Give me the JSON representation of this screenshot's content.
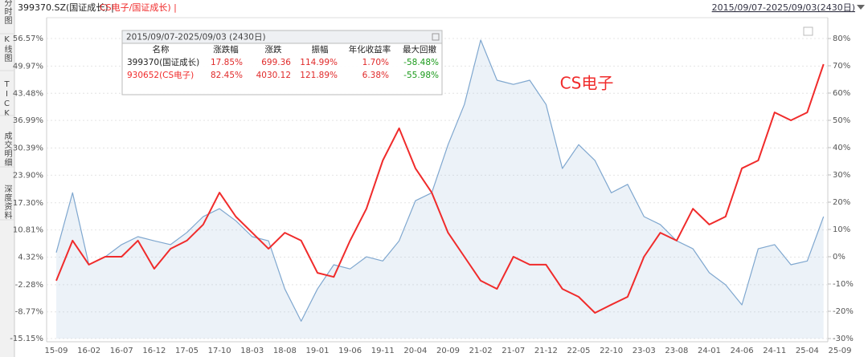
{
  "chart_data": {
    "type": "line",
    "title": "399370.SZ(国证成长) |",
    "subtitle": "CS电子/国证成长) |",
    "date_range": "2015/09/07-2025/09/03(2430日)",
    "annotation": "CS电子",
    "sidebar_tabs": [
      "分时图",
      "K线图",
      "TICK",
      "成交明细",
      "深度资料"
    ],
    "categories": [
      "15-09",
      null,
      "16-02",
      null,
      "16-07",
      null,
      "16-12",
      null,
      "17-05",
      null,
      "17-10",
      null,
      "18-03",
      null,
      "18-08",
      null,
      "19-01",
      null,
      "19-06",
      null,
      "19-11",
      null,
      "20-04",
      null,
      "20-09",
      null,
      "21-02",
      null,
      "21-07",
      null,
      "21-12",
      null,
      "22-05",
      null,
      "22-10",
      null,
      "23-03",
      null,
      "23-08",
      null,
      "24-01",
      null,
      "24-06",
      null,
      "24-11",
      null,
      "25-04",
      null,
      "25-09"
    ],
    "series": [
      {
        "name": "399370(国证成长)",
        "color": "#7fa7cf",
        "fill": "rgba(170,195,225,0.22)",
        "values": [
          5.4,
          19.7,
          2.5,
          4.4,
          7.3,
          9.2,
          8.2,
          7.3,
          10.2,
          14.0,
          15.9,
          13.0,
          9.2,
          8.2,
          -3.3,
          -11.0,
          -3.3,
          2.5,
          1.5,
          4.4,
          3.4,
          8.2,
          17.8,
          19.7,
          31.2,
          40.8,
          56.2,
          46.6,
          45.6,
          46.6,
          40.8,
          25.5,
          31.2,
          27.4,
          19.7,
          21.7,
          14.0,
          12.1,
          8.2,
          6.3,
          0.6,
          -2.3,
          -7.1,
          6.3,
          7.3,
          2.5,
          3.4,
          14.0,
          null
        ]
      },
      {
        "name": "930652(CS电子)",
        "color": "#f02b2b",
        "axis": "y2",
        "values": [
          -8.8,
          5.9,
          -2.9,
          0.0,
          0.0,
          5.9,
          -4.4,
          2.9,
          5.9,
          11.8,
          23.5,
          14.7,
          8.8,
          2.9,
          8.8,
          5.9,
          -5.9,
          -7.4,
          5.9,
          17.6,
          35.3,
          47.1,
          32.4,
          23.5,
          8.8,
          0.0,
          -8.8,
          -11.8,
          0.0,
          -2.9,
          -2.9,
          -11.8,
          -14.7,
          -20.6,
          -17.6,
          -14.7,
          0.0,
          8.8,
          5.9,
          17.6,
          11.8,
          14.7,
          32.4,
          35.3,
          52.9,
          50.0,
          52.9,
          70.6,
          null
        ]
      }
    ],
    "ylim": [
      -15.15,
      56.57
    ],
    "yticks": [
      {
        "value": -15.15,
        "label": "-15.15%"
      },
      {
        "value": -8.77,
        "label": "-8.77%"
      },
      {
        "value": -2.28,
        "label": "-2.28%"
      },
      {
        "value": 4.32,
        "label": "4.32%"
      },
      {
        "value": 10.81,
        "label": "10.81%"
      },
      {
        "value": 17.3,
        "label": "17.30%"
      },
      {
        "value": 23.9,
        "label": "23.90%"
      },
      {
        "value": 30.39,
        "label": "30.39%"
      },
      {
        "value": 36.99,
        "label": "36.99%"
      },
      {
        "value": 43.48,
        "label": "43.48%"
      },
      {
        "value": 49.97,
        "label": "49.97%"
      },
      {
        "value": 56.57,
        "label": "56.57%"
      }
    ],
    "y2lim": [
      -30,
      80
    ],
    "y2ticks": [
      {
        "value": -30,
        "label": "-30%"
      },
      {
        "value": -20,
        "label": "-20%"
      },
      {
        "value": -10,
        "label": "-10%"
      },
      {
        "value": 0,
        "label": "0%"
      },
      {
        "value": 10,
        "label": "10%"
      },
      {
        "value": 20,
        "label": "20%"
      },
      {
        "value": 30,
        "label": "30%"
      },
      {
        "value": 40,
        "label": "40%"
      },
      {
        "value": 50,
        "label": "50%"
      },
      {
        "value": 60,
        "label": "60%"
      },
      {
        "value": 70,
        "label": "70%"
      },
      {
        "value": 80,
        "label": "80%"
      }
    ],
    "grid": true,
    "stats_table": {
      "title": "2015/09/07-2025/09/03 (2430日)",
      "headers": [
        "名称",
        "涨跌幅",
        "涨跌",
        "振幅",
        "年化收益率",
        "最大回撤"
      ],
      "name_colors": [
        "#222222",
        "#f02b2b"
      ],
      "rows": [
        [
          "17.85%",
          "699.36",
          "114.99%",
          "1.70%",
          "-58.48%"
        ],
        [
          "82.45%",
          "4030.12",
          "121.89%",
          "6.38%",
          "-55.98%"
        ]
      ]
    }
  }
}
